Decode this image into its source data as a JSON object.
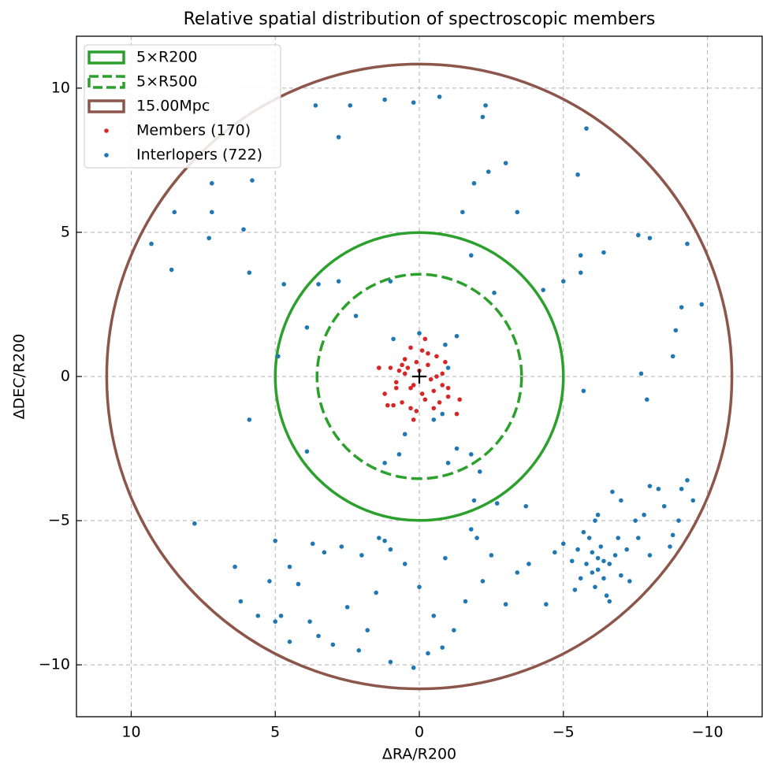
{
  "chart_data": {
    "type": "scatter",
    "title": "Relative spatial distribution of spectroscopic members",
    "xlabel": "ΔRA/R200",
    "ylabel": "ΔDEC/R200",
    "xlim": [
      11.9,
      -11.9
    ],
    "ylim": [
      -11.8,
      11.8
    ],
    "xticks": [
      10,
      5,
      0,
      {
        "value": -5,
        "label": "−5"
      },
      {
        "value": -10,
        "label": "−10"
      }
    ],
    "yticks": [
      {
        "value": -10,
        "label": "−10"
      },
      {
        "value": -5,
        "label": "−5"
      },
      0,
      5,
      10
    ],
    "grid": true,
    "legend": "upper left",
    "center": {
      "x": 0,
      "y": 0
    },
    "circles": [
      {
        "name": "5×R200",
        "radius": 5,
        "color": "#2ca02c",
        "dashed": false
      },
      {
        "name": "5×R500",
        "radius": 3.55,
        "color": "#2ca02c",
        "dashed": true
      },
      {
        "name": "15.00Mpc",
        "radius": 10.85,
        "color": "#8c564b",
        "dashed": false
      }
    ],
    "series": [
      {
        "name": "Members (170)",
        "color": "#d62728",
        "x": [
          0,
          0.2,
          -0.3,
          0.5,
          -0.5,
          0.8,
          -0.8,
          0.3,
          -0.2,
          1.0,
          -1.0,
          0.6,
          -0.6,
          0.1,
          -0.1,
          1.2,
          -1.3,
          0.4,
          -0.4,
          0.9,
          -0.9,
          0.7,
          -0.7,
          1.4,
          -1.4,
          0.2,
          -0.5,
          0.3,
          -0.3,
          0.6,
          -0.2,
          0.1,
          0.8,
          -0.8,
          1.1,
          -0.1,
          0.5,
          -0.6,
          0.3,
          -1.0
        ],
        "y": [
          0.2,
          -0.3,
          0.4,
          0.6,
          -0.5,
          -0.2,
          0.1,
          1.0,
          -0.8,
          0.3,
          -0.4,
          -0.9,
          0.7,
          -1.2,
          0.9,
          -0.6,
          -1.3,
          0.3,
          -0.1,
          -1.0,
          0.5,
          0.2,
          -0.9,
          0.3,
          -0.8,
          -1.5,
          -1.1,
          -0.4,
          0.8,
          0.4,
          1.3,
          0.5,
          -0.4,
          -0.3,
          -1.0,
          -0.6,
          0.1,
          0.0,
          -1.1,
          -0.7
        ]
      },
      {
        "name": "Interlopers (722)",
        "color": "#1f77b4",
        "x": [
          -5.5,
          -5.8,
          -6.0,
          -6.2,
          -6.4,
          -6.6,
          -6.1,
          -5.9,
          -6.3,
          -6.8,
          -7.0,
          -5.6,
          -6.5,
          -5.3,
          -6.9,
          -7.2,
          -6.0,
          -6.2,
          -6.4,
          -5.7,
          -6.7,
          -7.0,
          -6.2,
          -7.5,
          -6.6,
          -5.0,
          -4.7,
          -7.3,
          -5.4,
          -6.1,
          -8.0,
          -8.5,
          -9.3,
          -9.0,
          -8.7,
          -8.0,
          -7.8,
          -9.5,
          -8.3,
          -8.8,
          -7.6,
          -9.1,
          4.5,
          3.8,
          3.0,
          2.5,
          1.8,
          1.5,
          1.2,
          1.4,
          1.0,
          0.5,
          0,
          -0.5,
          -0.3,
          0.2,
          -0.8,
          -1.2,
          -1.6,
          -2.2,
          -2.5,
          -3.0,
          -3.4,
          -3.8,
          -4.4,
          2.0,
          2.7,
          3.3,
          3.7,
          4.2,
          4.5,
          5.0,
          5.2,
          4.8,
          3.5,
          2.1,
          1.0,
          -0.9,
          -1.8,
          -2.7,
          -3.7,
          -2.0,
          7.8,
          6.4,
          6.2,
          5.6,
          5.0,
          0.7,
          -0.5,
          -1.3,
          -1.8,
          -2.1,
          -1.0,
          1.2,
          -1.9,
          0.5,
          -0.8,
          0,
          -0.9,
          -1.3,
          0.9,
          -1.0,
          1.4,
          5.9,
          3.9,
          4.9,
          3.9,
          2.8,
          1.0,
          9.3,
          8.6,
          7.3,
          6.1,
          5.9,
          4.7,
          3.5,
          2.2,
          -1.8,
          -2.6,
          -4.3,
          -5.0,
          -5.6,
          -6.4,
          -7.6,
          -8.0,
          -9.3,
          -9.1,
          -9.8,
          -8.9,
          -5.6,
          -2.4,
          -3.0,
          -1.9,
          -3.4,
          -5.5,
          -5.8,
          -2.3,
          0.2,
          -0.7,
          8.5,
          7.2,
          7.2,
          5.8,
          2.8,
          3.6,
          2.4,
          1.2,
          -2.2,
          -1.5,
          -7.7,
          -7.9,
          -8.8,
          -5.7
        ],
        "y": [
          -6.0,
          -6.5,
          -6.8,
          -6.3,
          -7.0,
          -6.5,
          -7.3,
          -5.6,
          -5.9,
          -6.2,
          -6.9,
          -7.0,
          -7.6,
          -6.4,
          -5.6,
          -6.0,
          -6.1,
          -6.7,
          -6.4,
          -5.4,
          -4.0,
          -4.3,
          -4.8,
          -5.0,
          -7.8,
          -5.8,
          -6.1,
          -7.1,
          -7.4,
          -5.0,
          -3.8,
          -4.5,
          -3.6,
          -5.0,
          -5.9,
          -6.2,
          -4.8,
          -4.3,
          -3.9,
          -5.5,
          -5.6,
          -3.9,
          -9.2,
          -8.5,
          -9.3,
          -8.0,
          -8.8,
          -7.5,
          -5.7,
          -5.6,
          -6.0,
          -6.5,
          -7.3,
          -8.3,
          -9.6,
          -10.1,
          -9.4,
          -8.8,
          -7.8,
          -7.1,
          -6.2,
          -7.9,
          -6.8,
          -6.5,
          -7.9,
          -6.2,
          -5.9,
          -6.1,
          -5.8,
          -7.2,
          -6.6,
          -5.7,
          -7.1,
          -8.3,
          -9.0,
          -9.5,
          -9.9,
          -6.3,
          -5.3,
          -4.4,
          -4.5,
          -5.6,
          -5.1,
          -6.6,
          -7.8,
          -8.3,
          -8.5,
          -2.7,
          -1.5,
          -2.5,
          -2.7,
          -3.3,
          -3.0,
          -3.0,
          -4.3,
          -2.0,
          -1.3,
          1.5,
          1.1,
          1.4,
          1.3,
          0.3,
          0.3,
          -1.5,
          -2.6,
          0.7,
          1.7,
          3.3,
          3.3,
          4.6,
          3.7,
          4.8,
          5.1,
          3.6,
          3.2,
          3.2,
          2.1,
          4.2,
          2.9,
          3.0,
          3.3,
          3.6,
          4.3,
          4.9,
          4.8,
          4.6,
          2.4,
          2.5,
          1.6,
          4.2,
          7.1,
          7.4,
          6.7,
          5.7,
          7.0,
          8.6,
          9.4,
          9.5,
          9.7,
          5.7,
          6.7,
          5.7,
          6.8,
          8.3,
          9.4,
          9.4,
          9.6,
          9.0,
          5.7,
          0.1,
          -0.8,
          0.7,
          -0.5
        ]
      }
    ]
  }
}
